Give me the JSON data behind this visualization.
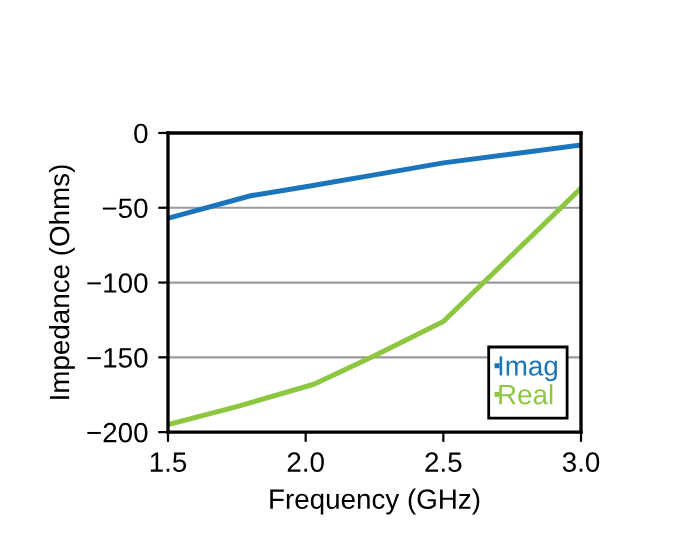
{
  "chart_data": {
    "type": "line",
    "xlabel": "Frequency (GHz)",
    "ylabel": "Impedance (Ohms)",
    "series": [
      {
        "name": "Imag",
        "color": "#1a75bc",
        "x": [
          1.5,
          1.8,
          2.0,
          2.25,
          2.5,
          2.75,
          3.0
        ],
        "values": [
          -57,
          -42,
          -36,
          -28,
          -20,
          -14,
          -8
        ]
      },
      {
        "name": "Real",
        "color": "#8dc63f",
        "x": [
          1.5,
          1.75,
          2.03,
          2.25,
          2.5,
          3.0
        ],
        "values": [
          -195,
          -183,
          -168,
          -149,
          -126,
          -37
        ]
      }
    ],
    "xlim": [
      1.5,
      3.0
    ],
    "xticks": [
      {
        "value": 1.5,
        "label": "1.5"
      },
      {
        "value": 2.0,
        "label": "2.0"
      },
      {
        "value": 2.5,
        "label": "2.5"
      },
      {
        "value": 3.0,
        "label": "3.0"
      }
    ],
    "ylim": [
      -200,
      0
    ],
    "yticks": [
      {
        "value": -200,
        "label": "−200"
      },
      {
        "value": -150,
        "label": "−150"
      },
      {
        "value": -100,
        "label": "−100"
      },
      {
        "value": -50,
        "label": "−50"
      },
      0
    ],
    "grid": "y",
    "legend": "bottom right",
    "marker": "none",
    "line_style": "solid"
  }
}
